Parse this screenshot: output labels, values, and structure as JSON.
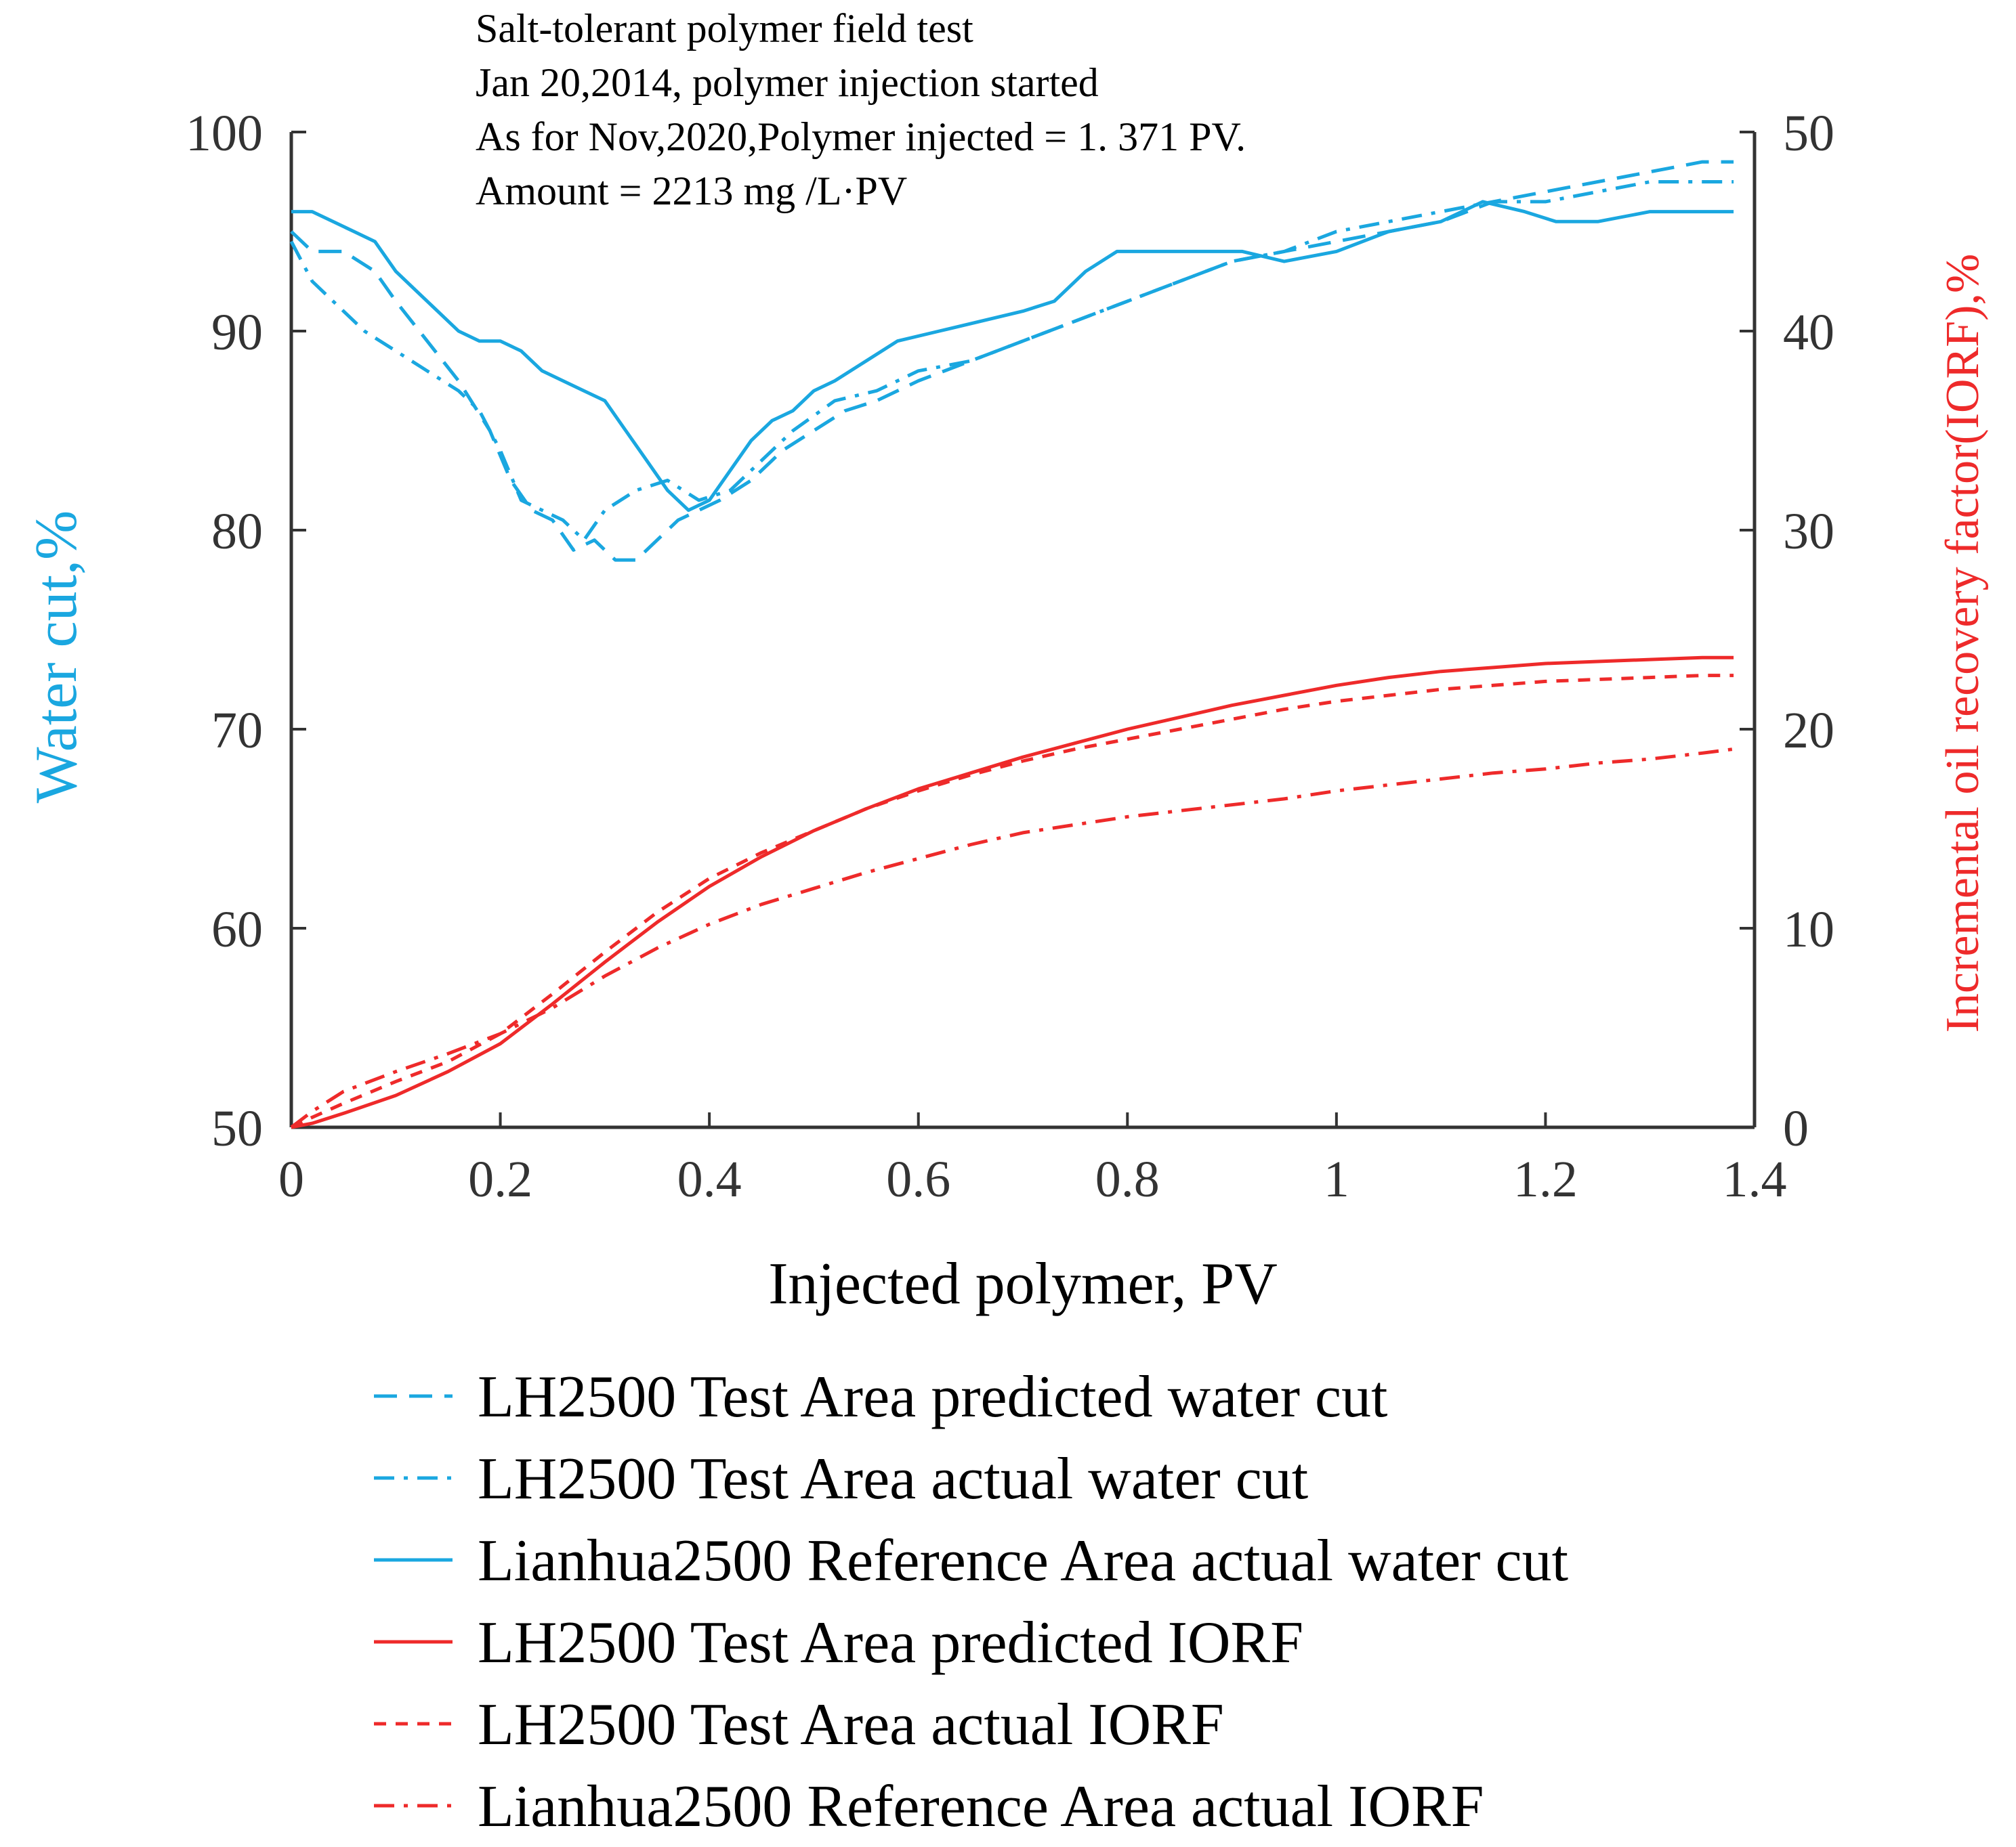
{
  "chart_data": {
    "type": "line",
    "title": "",
    "annotation": [
      "Salt-tolerant polymer field test",
      "Jan 20,2014, polymer injection started",
      "As for Nov,2020,Polymer injected = 1. 371 PV.",
      "Amount = 2213 mg /L·PV"
    ],
    "xlabel": "Injected polymer, PV",
    "ylabel_left": "Water cut,%",
    "ylabel_right": "Incremental oil recovery factor(IORF),%",
    "xlim": [
      0,
      1.4
    ],
    "ylim_left": [
      50,
      100
    ],
    "ylim_right": [
      0,
      50
    ],
    "x_ticks": [
      "0",
      "0.2",
      "0.4",
      "0.6",
      "0.8",
      "1",
      "1.2",
      "1.4"
    ],
    "x_tick_values": [
      0,
      0.2,
      0.4,
      0.6,
      0.8,
      1.0,
      1.2,
      1.4
    ],
    "y_left_ticks": [
      "50",
      "60",
      "70",
      "80",
      "90",
      "100"
    ],
    "y_left_tick_values": [
      50,
      60,
      70,
      80,
      90,
      100
    ],
    "y_right_ticks": [
      "0",
      "10",
      "20",
      "30",
      "40",
      "50"
    ],
    "y_right_tick_values": [
      0,
      10,
      20,
      30,
      40,
      50
    ],
    "colors": {
      "water": "#1aa7e0",
      "iorf": "#ee2a2a",
      "axis": "#333333",
      "text": "#000000"
    },
    "series": [
      {
        "name": "LH2500 Test Area predicted water cut",
        "axis": "left",
        "color": "#1aa7e0",
        "dash": "dash",
        "x": [
          0,
          0.02,
          0.05,
          0.08,
          0.1,
          0.13,
          0.16,
          0.19,
          0.21,
          0.23,
          0.25,
          0.27,
          0.29,
          0.31,
          0.33,
          0.35,
          0.37,
          0.39,
          0.41,
          0.44,
          0.47,
          0.5,
          0.53,
          0.56,
          0.6,
          0.65,
          0.7,
          0.75,
          0.8,
          0.85,
          0.9,
          0.95,
          1.0,
          1.05,
          1.1,
          1.15,
          1.2,
          1.25,
          1.3,
          1.35,
          1.38
        ],
        "y": [
          95,
          94,
          94,
          93,
          91.5,
          89.5,
          87.5,
          85,
          82.5,
          81,
          80.5,
          79,
          79.5,
          78.5,
          78.5,
          79.5,
          80.5,
          81,
          81.5,
          82.5,
          84,
          85,
          86,
          86.5,
          87.5,
          88.5,
          89.5,
          90.5,
          91.5,
          92.5,
          93.5,
          94,
          94.5,
          95,
          95.5,
          96.5,
          97,
          97.5,
          98,
          98.5,
          98.5
        ]
      },
      {
        "name": "LH2500 Test Area actual water cut",
        "axis": "left",
        "color": "#1aa7e0",
        "dash": "dashdot",
        "x": [
          0,
          0.02,
          0.04,
          0.07,
          0.1,
          0.13,
          0.16,
          0.18,
          0.2,
          0.22,
          0.24,
          0.26,
          0.28,
          0.3,
          0.33,
          0.36,
          0.39,
          0.42,
          0.45,
          0.48,
          0.52,
          0.56,
          0.6,
          0.65,
          0.7,
          0.75,
          0.8,
          0.85,
          0.9,
          0.95,
          1.0,
          1.05,
          1.1,
          1.15,
          1.2,
          1.25,
          1.3,
          1.35,
          1.38
        ],
        "y": [
          94.5,
          92.5,
          91.5,
          90,
          89,
          88,
          87,
          86,
          84,
          81.5,
          81,
          80.5,
          79.5,
          81,
          82,
          82.5,
          81.5,
          82,
          83.5,
          85,
          86.5,
          87,
          88,
          88.5,
          89.5,
          90.5,
          91.5,
          92.5,
          93.5,
          94,
          95,
          95.5,
          96,
          96.5,
          96.5,
          97,
          97.5,
          97.5,
          97.5
        ]
      },
      {
        "name": "Lianhua2500 Reference Area actual water cut",
        "axis": "left",
        "color": "#1aa7e0",
        "dash": "solid",
        "x": [
          0,
          0.02,
          0.04,
          0.06,
          0.08,
          0.1,
          0.12,
          0.14,
          0.16,
          0.18,
          0.2,
          0.22,
          0.24,
          0.26,
          0.28,
          0.3,
          0.32,
          0.34,
          0.36,
          0.38,
          0.4,
          0.42,
          0.44,
          0.46,
          0.48,
          0.5,
          0.52,
          0.55,
          0.58,
          0.62,
          0.66,
          0.7,
          0.73,
          0.76,
          0.79,
          0.82,
          0.85,
          0.88,
          0.91,
          0.95,
          1.0,
          1.05,
          1.1,
          1.14,
          1.18,
          1.21,
          1.25,
          1.3,
          1.35,
          1.38
        ],
        "y": [
          96,
          96,
          95.5,
          95,
          94.5,
          93,
          92,
          91,
          90,
          89.5,
          89.5,
          89,
          88,
          87.5,
          87,
          86.5,
          85,
          83.5,
          82,
          81,
          81.5,
          83,
          84.5,
          85.5,
          86,
          87,
          87.5,
          88.5,
          89.5,
          90,
          90.5,
          91,
          91.5,
          93,
          94,
          94,
          94,
          94,
          94,
          93.5,
          94,
          95,
          95.5,
          96.5,
          96,
          95.5,
          95.5,
          96,
          96,
          96
        ]
      },
      {
        "name": "LH2500 Test Area predicted IORF",
        "axis": "right",
        "color": "#ee2a2a",
        "dash": "solid",
        "x": [
          0,
          0.02,
          0.05,
          0.1,
          0.15,
          0.2,
          0.25,
          0.3,
          0.35,
          0.4,
          0.45,
          0.5,
          0.55,
          0.6,
          0.65,
          0.7,
          0.75,
          0.8,
          0.85,
          0.9,
          0.95,
          1.0,
          1.05,
          1.1,
          1.15,
          1.2,
          1.25,
          1.3,
          1.35,
          1.38
        ],
        "y": [
          0,
          0.2,
          0.7,
          1.6,
          2.8,
          4.2,
          6.2,
          8.3,
          10.3,
          12.1,
          13.6,
          14.9,
          16.0,
          17.0,
          17.8,
          18.6,
          19.3,
          20.0,
          20.6,
          21.2,
          21.7,
          22.2,
          22.6,
          22.9,
          23.1,
          23.3,
          23.4,
          23.5,
          23.6,
          23.6
        ]
      },
      {
        "name": "LH2500 Test Area actual IORF",
        "axis": "right",
        "color": "#ee2a2a",
        "dash": "shortdash",
        "x": [
          0,
          0.02,
          0.05,
          0.1,
          0.15,
          0.2,
          0.25,
          0.3,
          0.35,
          0.4,
          0.45,
          0.5,
          0.55,
          0.6,
          0.65,
          0.7,
          0.75,
          0.8,
          0.85,
          0.9,
          0.95,
          1.0,
          1.05,
          1.1,
          1.15,
          1.2,
          1.25,
          1.3,
          1.35,
          1.38
        ],
        "y": [
          0,
          0.5,
          1.2,
          2.3,
          3.3,
          4.7,
          6.7,
          8.8,
          10.8,
          12.5,
          13.8,
          14.9,
          16.0,
          16.9,
          17.7,
          18.4,
          19.0,
          19.5,
          20.0,
          20.5,
          21.0,
          21.4,
          21.7,
          22.0,
          22.2,
          22.4,
          22.5,
          22.6,
          22.7,
          22.7
        ]
      },
      {
        "name": "Lianhua2500 Reference Area actual IORF",
        "axis": "right",
        "color": "#ee2a2a",
        "dash": "dashdot",
        "x": [
          0,
          0.02,
          0.05,
          0.1,
          0.15,
          0.2,
          0.25,
          0.3,
          0.35,
          0.4,
          0.45,
          0.5,
          0.55,
          0.6,
          0.65,
          0.7,
          0.75,
          0.8,
          0.85,
          0.9,
          0.95,
          1.0,
          1.05,
          1.1,
          1.15,
          1.2,
          1.25,
          1.3,
          1.35,
          1.38
        ],
        "y": [
          0,
          0.8,
          1.8,
          2.8,
          3.7,
          4.7,
          6.0,
          7.6,
          9.0,
          10.2,
          11.2,
          12.0,
          12.8,
          13.5,
          14.2,
          14.8,
          15.2,
          15.6,
          15.9,
          16.2,
          16.5,
          16.9,
          17.2,
          17.5,
          17.8,
          18.0,
          18.3,
          18.5,
          18.8,
          19.0
        ]
      }
    ],
    "legend": [
      {
        "label": "LH2500 Test Area predicted water cut",
        "color": "#1aa7e0",
        "dash": "dash"
      },
      {
        "label": "LH2500 Test Area actual water cut",
        "color": "#1aa7e0",
        "dash": "dashdot"
      },
      {
        "label": "Lianhua2500 Reference Area actual water cut",
        "color": "#1aa7e0",
        "dash": "solid"
      },
      {
        "label": "LH2500 Test Area predicted IORF",
        "color": "#ee2a2a",
        "dash": "solid"
      },
      {
        "label": "LH2500 Test Area actual IORF",
        "color": "#ee2a2a",
        "dash": "shortdash"
      },
      {
        "label": "Lianhua2500 Reference Area actual IORF",
        "color": "#ee2a2a",
        "dash": "dashdot"
      }
    ],
    "legend_position": "bottom"
  }
}
